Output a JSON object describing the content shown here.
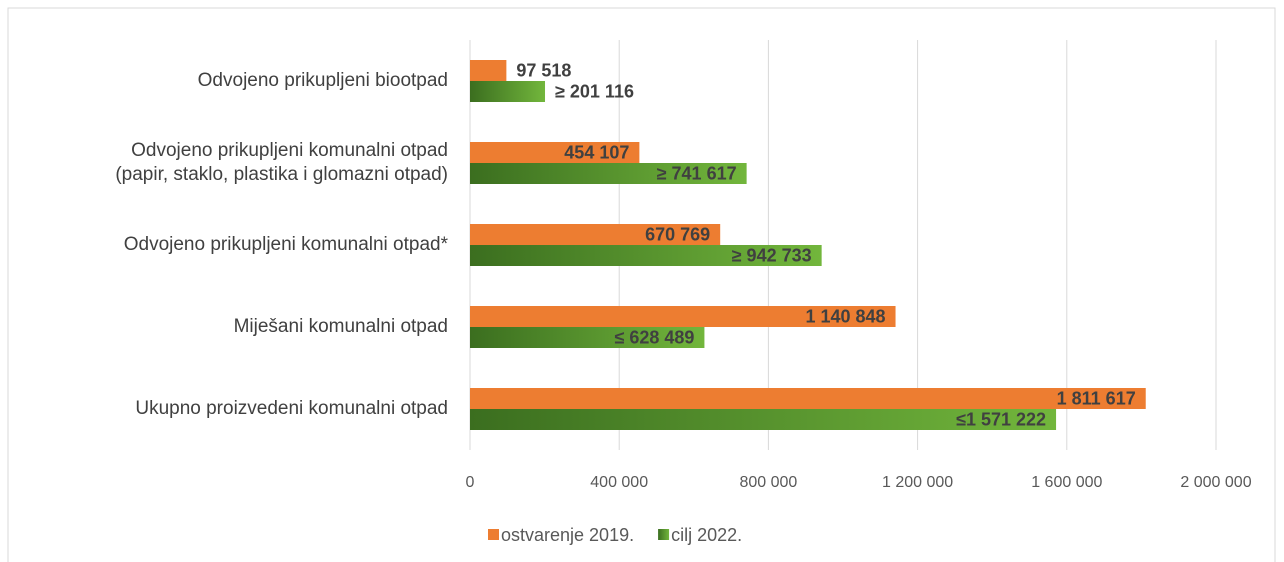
{
  "chart_data": {
    "type": "hbar",
    "categories": [
      "Odvojeno prikupljeni biootpad",
      "Odvojeno prikupljeni komunalni otpad \n(papir, staklo, plastika i glomazni otpad)",
      "Odvojeno prikupljeni komunalni otpad*",
      "Miješani komunalni otpad",
      "Ukupno proizvedeni komunalni otpad"
    ],
    "series": [
      {
        "name": "ostvarenje 2019.",
        "color": "#ed7d31",
        "values": [
          97518,
          454107,
          670769,
          1140848,
          1811617
        ],
        "value_labels": [
          "97 518",
          "454 107",
          "670 769",
          "1 140 848",
          "1 811 617"
        ]
      },
      {
        "name": "cilj 2022.",
        "color": [
          "#3b6e1f",
          "#72b63c"
        ],
        "values": [
          201116,
          741617,
          942733,
          628489,
          1571222
        ],
        "value_labels": [
          "≥ 201 116",
          "≥ 741 617",
          "≥ 942 733",
          "≤ 628 489",
          "≤1 571 222"
        ]
      }
    ],
    "xlim": [
      0,
      2000000
    ],
    "xticks": [
      0,
      {
        "value": 400000,
        "label": "400 000"
      },
      {
        "value": 800000,
        "label": "800 000"
      },
      {
        "value": 1200000,
        "label": "1 200 000"
      },
      {
        "value": 1600000,
        "label": "1 600 000"
      },
      {
        "value": 2000000,
        "label": "2 000 000"
      }
    ],
    "grid": true,
    "legend": "bottom"
  }
}
